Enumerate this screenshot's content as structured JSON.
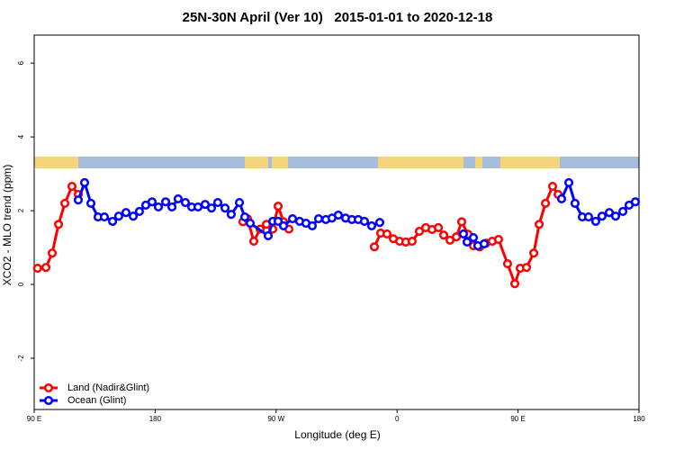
{
  "chart_data": {
    "type": "line",
    "title": "25N-30N April (Ver 10)   2015-01-01 to 2020-12-18",
    "x_label": "Longitude (deg E)",
    "y_label": "XCO2 - MLO trend (ppm)",
    "xlim": [
      90,
      540
    ],
    "ylim": [
      -3.39,
      6.76
    ],
    "xticks": [
      {
        "value": 90,
        "label": "90 E"
      },
      180,
      {
        "value": 270,
        "label": "90 W"
      },
      {
        "value": 360,
        "label": "0"
      },
      {
        "value": 450,
        "label": "90 E"
      },
      {
        "value": 540,
        "label": "180"
      }
    ],
    "yticks": [
      -2,
      0,
      2,
      4,
      6
    ],
    "legend": "bottom-left",
    "series": [
      {
        "name": "Land (Nadir&Glint)",
        "color": "#ff0000",
        "x": [
          92.5,
          98.7,
          103.4,
          108.1,
          112.8,
          118.1,
          122.8,
          null,
          245.3,
          248.7,
          253.4,
          258.1,
          262.8,
          267.5,
          271.5,
          275.5,
          279.5,
          null,
          343.1,
          347.8,
          352.5,
          357.2,
          361.9,
          366.5,
          371.2,
          376.6,
          381.3,
          386,
          390.7,
          394.7,
          399.4,
          404.1,
          408.1,
          412.8,
          416.8,
          421.5,
          426.1,
          430.8,
          435.5,
          442.2,
          447.6,
          451.6,
          456.3,
          461.7,
          465.7,
          470.4,
          475.7,
          479.8
        ],
        "values": [
          0.44,
          0.46,
          0.85,
          1.63,
          2.2,
          2.66,
          2.44,
          null,
          1.7,
          1.78,
          1.17,
          1.5,
          1.63,
          1.5,
          2.12,
          1.7,
          1.5,
          null,
          1.02,
          1.39,
          1.37,
          1.24,
          1.17,
          1.15,
          1.17,
          1.44,
          1.54,
          1.49,
          1.54,
          1.34,
          1.2,
          1.29,
          1.7,
          1.36,
          1.05,
          1.02,
          1.12,
          1.17,
          1.22,
          0.56,
          0.02,
          0.44,
          0.46,
          0.85,
          1.63,
          2.2,
          2.66,
          2.44
        ]
      },
      {
        "name": "Ocean (Glint)",
        "color": "#0000ff",
        "x": [
          122.8,
          127.5,
          132.2,
          137.5,
          142.2,
          148.3,
          152.9,
          158.3,
          163.7,
          168.3,
          173,
          177.7,
          182.4,
          187.8,
          192.5,
          197.1,
          202.5,
          207.2,
          211.9,
          217.2,
          221.9,
          226.6,
          232,
          236.6,
          242.7,
          246.7,
          250.7,
          264.1,
          267.5,
          271.5,
          275.5,
          282.2,
          287.5,
          292.2,
          296.9,
          301.6,
          307,
          311.6,
          316.3,
          321.7,
          326.4,
          331.1,
          335.7,
          341.1,
          347.1,
          null,
          409.4,
          412.1,
          416.8,
          420.1,
          424.8,
          null,
          482.4,
          487.8,
          492.4,
          497.8,
          502.5,
          507.8,
          512.5,
          517.9,
          522.6,
          528,
          532.6,
          537.3
        ],
        "values": [
          2.29,
          2.76,
          2.2,
          1.83,
          1.83,
          1.71,
          1.85,
          1.95,
          1.85,
          1.98,
          2.15,
          2.24,
          2.1,
          2.24,
          2.1,
          2.32,
          2.22,
          2.1,
          2.1,
          2.17,
          2.07,
          2.22,
          2.07,
          1.9,
          2.22,
          1.83,
          1.66,
          1.32,
          1.71,
          1.71,
          1.59,
          1.78,
          1.71,
          1.66,
          1.59,
          1.78,
          1.76,
          1.8,
          1.88,
          1.8,
          1.76,
          1.76,
          1.71,
          1.59,
          1.68,
          null,
          1.37,
          1.15,
          1.27,
          1.05,
          1.1,
          null,
          2.32,
          2.76,
          2.2,
          1.83,
          1.83,
          1.71,
          1.85,
          1.95,
          1.85,
          1.98,
          2.15,
          2.24
        ]
      }
    ]
  }
}
